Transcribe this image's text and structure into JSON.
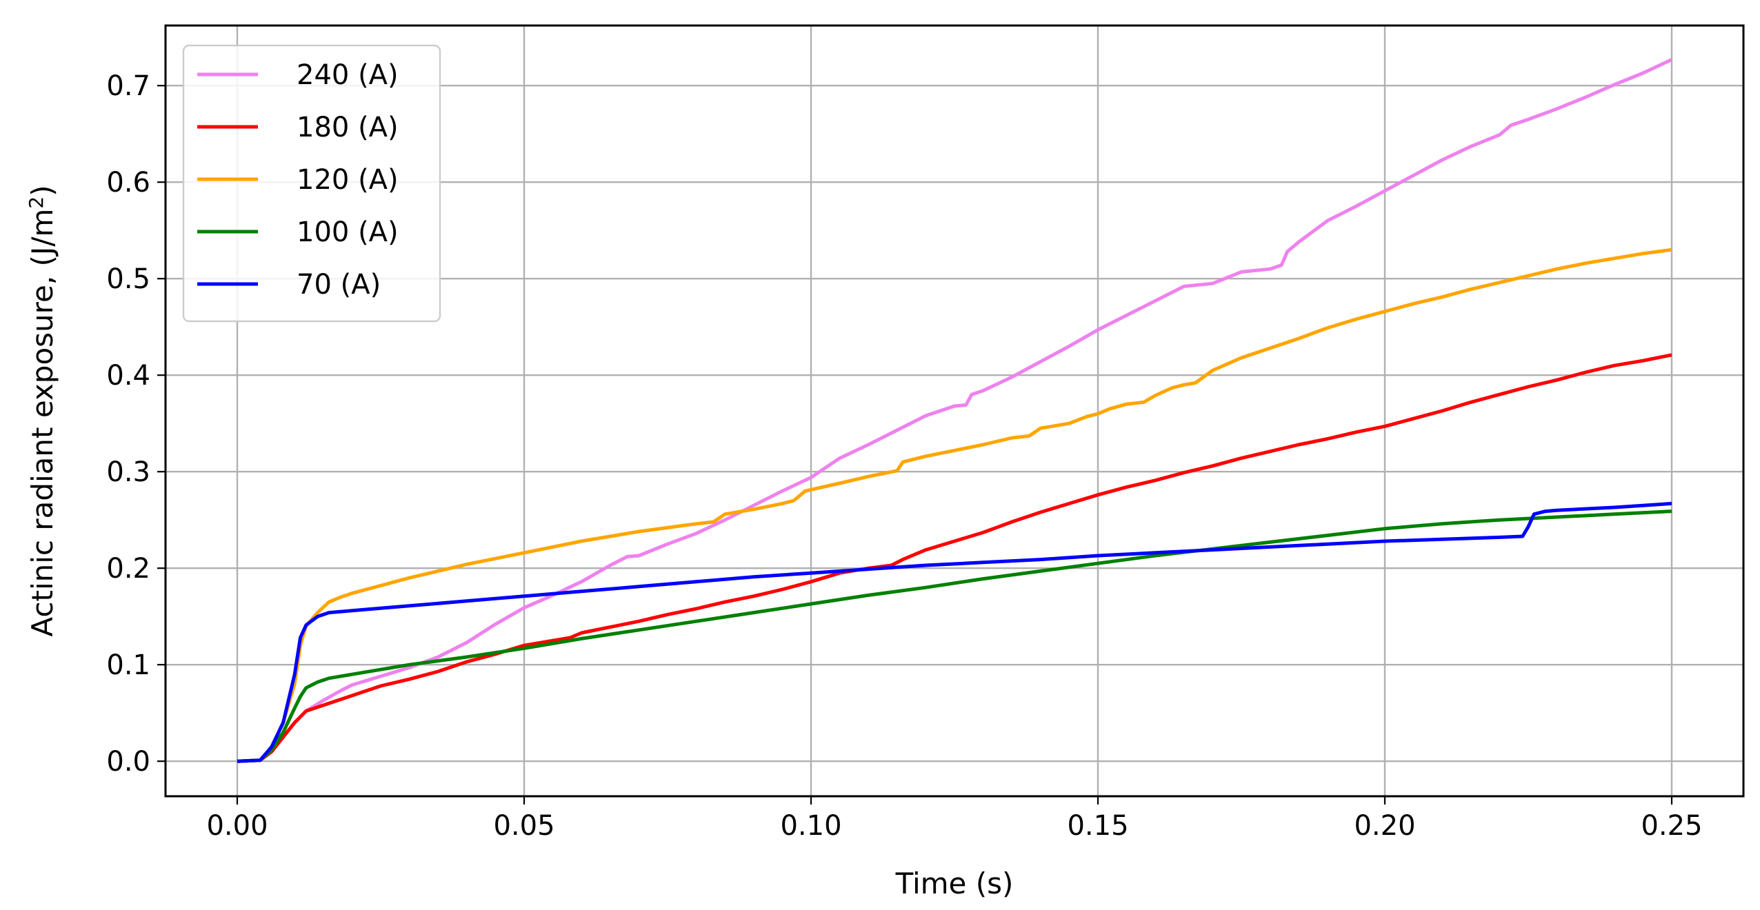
{
  "chart_data": {
    "type": "line",
    "xlabel": "Time (s)",
    "ylabel": "Actinic radiant exposure, (J/m",
    "ylabel_sup": "2",
    "ylabel_tail": ")",
    "xlim": [
      -0.0125,
      0.2625
    ],
    "ylim": [
      -0.0363,
      0.7623
    ],
    "xticks": [
      0.0,
      0.05,
      0.1,
      0.15,
      0.2,
      0.25
    ],
    "xtick_labels": [
      "0.00",
      "0.05",
      "0.10",
      "0.15",
      "0.20",
      "0.25"
    ],
    "yticks": [
      0.0,
      0.1,
      0.2,
      0.3,
      0.4,
      0.5,
      0.6,
      0.7
    ],
    "ytick_labels": [
      "0.0",
      "0.1",
      "0.2",
      "0.3",
      "0.4",
      "0.5",
      "0.6",
      "0.7"
    ],
    "grid": true,
    "legend_position": "upper-left",
    "series": [
      {
        "name": "240 (A)",
        "color": "#ee82ee",
        "points": [
          [
            0,
            0
          ],
          [
            0.004,
            0.001
          ],
          [
            0.006,
            0.01
          ],
          [
            0.008,
            0.025
          ],
          [
            0.01,
            0.04
          ],
          [
            0.012,
            0.052
          ],
          [
            0.015,
            0.063
          ],
          [
            0.018,
            0.073
          ],
          [
            0.02,
            0.079
          ],
          [
            0.025,
            0.088
          ],
          [
            0.03,
            0.097
          ],
          [
            0.035,
            0.108
          ],
          [
            0.04,
            0.123
          ],
          [
            0.045,
            0.142
          ],
          [
            0.05,
            0.159
          ],
          [
            0.055,
            0.172
          ],
          [
            0.06,
            0.186
          ],
          [
            0.065,
            0.203
          ],
          [
            0.068,
            0.212
          ],
          [
            0.07,
            0.213
          ],
          [
            0.075,
            0.225
          ],
          [
            0.08,
            0.236
          ],
          [
            0.085,
            0.25
          ],
          [
            0.09,
            0.265
          ],
          [
            0.095,
            0.28
          ],
          [
            0.1,
            0.294
          ],
          [
            0.105,
            0.314
          ],
          [
            0.11,
            0.328
          ],
          [
            0.115,
            0.343
          ],
          [
            0.12,
            0.358
          ],
          [
            0.125,
            0.368
          ],
          [
            0.127,
            0.369
          ],
          [
            0.128,
            0.38
          ],
          [
            0.13,
            0.384
          ],
          [
            0.135,
            0.398
          ],
          [
            0.14,
            0.414
          ],
          [
            0.145,
            0.43
          ],
          [
            0.15,
            0.447
          ],
          [
            0.155,
            0.462
          ],
          [
            0.16,
            0.477
          ],
          [
            0.165,
            0.492
          ],
          [
            0.17,
            0.495
          ],
          [
            0.175,
            0.507
          ],
          [
            0.18,
            0.51
          ],
          [
            0.182,
            0.514
          ],
          [
            0.183,
            0.528
          ],
          [
            0.185,
            0.538
          ],
          [
            0.19,
            0.56
          ],
          [
            0.195,
            0.575
          ],
          [
            0.2,
            0.591
          ],
          [
            0.205,
            0.607
          ],
          [
            0.21,
            0.623
          ],
          [
            0.215,
            0.637
          ],
          [
            0.22,
            0.649
          ],
          [
            0.222,
            0.659
          ],
          [
            0.225,
            0.665
          ],
          [
            0.23,
            0.676
          ],
          [
            0.235,
            0.688
          ],
          [
            0.24,
            0.701
          ],
          [
            0.245,
            0.713
          ],
          [
            0.25,
            0.727
          ]
        ]
      },
      {
        "name": "180 (A)",
        "color": "#ff0000",
        "points": [
          [
            0,
            0
          ],
          [
            0.004,
            0.001
          ],
          [
            0.006,
            0.01
          ],
          [
            0.008,
            0.025
          ],
          [
            0.01,
            0.04
          ],
          [
            0.012,
            0.052
          ],
          [
            0.015,
            0.058
          ],
          [
            0.02,
            0.068
          ],
          [
            0.025,
            0.078
          ],
          [
            0.03,
            0.085
          ],
          [
            0.035,
            0.093
          ],
          [
            0.04,
            0.103
          ],
          [
            0.045,
            0.111
          ],
          [
            0.05,
            0.12
          ],
          [
            0.055,
            0.125
          ],
          [
            0.058,
            0.128
          ],
          [
            0.06,
            0.133
          ],
          [
            0.065,
            0.139
          ],
          [
            0.07,
            0.145
          ],
          [
            0.075,
            0.152
          ],
          [
            0.08,
            0.158
          ],
          [
            0.085,
            0.165
          ],
          [
            0.09,
            0.171
          ],
          [
            0.095,
            0.178
          ],
          [
            0.1,
            0.186
          ],
          [
            0.105,
            0.195
          ],
          [
            0.11,
            0.2
          ],
          [
            0.114,
            0.203
          ],
          [
            0.116,
            0.209
          ],
          [
            0.12,
            0.219
          ],
          [
            0.125,
            0.228
          ],
          [
            0.13,
            0.237
          ],
          [
            0.135,
            0.248
          ],
          [
            0.14,
            0.258
          ],
          [
            0.145,
            0.267
          ],
          [
            0.15,
            0.276
          ],
          [
            0.155,
            0.284
          ],
          [
            0.16,
            0.291
          ],
          [
            0.165,
            0.299
          ],
          [
            0.17,
            0.306
          ],
          [
            0.175,
            0.314
          ],
          [
            0.18,
            0.321
          ],
          [
            0.185,
            0.328
          ],
          [
            0.19,
            0.334
          ],
          [
            0.195,
            0.341
          ],
          [
            0.2,
            0.347
          ],
          [
            0.205,
            0.355
          ],
          [
            0.21,
            0.363
          ],
          [
            0.215,
            0.372
          ],
          [
            0.22,
            0.38
          ],
          [
            0.225,
            0.388
          ],
          [
            0.23,
            0.395
          ],
          [
            0.235,
            0.403
          ],
          [
            0.24,
            0.41
          ],
          [
            0.245,
            0.415
          ],
          [
            0.25,
            0.421
          ]
        ]
      },
      {
        "name": "120 (A)",
        "color": "#ffa500",
        "points": [
          [
            0,
            0
          ],
          [
            0.004,
            0.001
          ],
          [
            0.006,
            0.015
          ],
          [
            0.008,
            0.04
          ],
          [
            0.01,
            0.08
          ],
          [
            0.011,
            0.12
          ],
          [
            0.012,
            0.14
          ],
          [
            0.014,
            0.154
          ],
          [
            0.016,
            0.165
          ],
          [
            0.018,
            0.17
          ],
          [
            0.02,
            0.174
          ],
          [
            0.025,
            0.182
          ],
          [
            0.03,
            0.19
          ],
          [
            0.035,
            0.197
          ],
          [
            0.04,
            0.204
          ],
          [
            0.045,
            0.21
          ],
          [
            0.05,
            0.216
          ],
          [
            0.055,
            0.222
          ],
          [
            0.06,
            0.228
          ],
          [
            0.065,
            0.233
          ],
          [
            0.07,
            0.238
          ],
          [
            0.075,
            0.242
          ],
          [
            0.08,
            0.246
          ],
          [
            0.083,
            0.248
          ],
          [
            0.085,
            0.256
          ],
          [
            0.09,
            0.261
          ],
          [
            0.095,
            0.267
          ],
          [
            0.097,
            0.27
          ],
          [
            0.099,
            0.28
          ],
          [
            0.105,
            0.288
          ],
          [
            0.11,
            0.295
          ],
          [
            0.115,
            0.301
          ],
          [
            0.116,
            0.31
          ],
          [
            0.12,
            0.316
          ],
          [
            0.125,
            0.322
          ],
          [
            0.13,
            0.328
          ],
          [
            0.135,
            0.335
          ],
          [
            0.138,
            0.337
          ],
          [
            0.14,
            0.345
          ],
          [
            0.145,
            0.35
          ],
          [
            0.148,
            0.357
          ],
          [
            0.15,
            0.36
          ],
          [
            0.152,
            0.365
          ],
          [
            0.155,
            0.37
          ],
          [
            0.158,
            0.372
          ],
          [
            0.16,
            0.379
          ],
          [
            0.163,
            0.387
          ],
          [
            0.165,
            0.39
          ],
          [
            0.167,
            0.392
          ],
          [
            0.17,
            0.405
          ],
          [
            0.175,
            0.418
          ],
          [
            0.18,
            0.428
          ],
          [
            0.185,
            0.438
          ],
          [
            0.19,
            0.449
          ],
          [
            0.195,
            0.458
          ],
          [
            0.2,
            0.466
          ],
          [
            0.205,
            0.474
          ],
          [
            0.21,
            0.481
          ],
          [
            0.215,
            0.489
          ],
          [
            0.22,
            0.496
          ],
          [
            0.225,
            0.503
          ],
          [
            0.23,
            0.51
          ],
          [
            0.235,
            0.516
          ],
          [
            0.24,
            0.521
          ],
          [
            0.245,
            0.526
          ],
          [
            0.25,
            0.53
          ]
        ]
      },
      {
        "name": "100 (A)",
        "color": "#008000",
        "points": [
          [
            0,
            0
          ],
          [
            0.004,
            0.001
          ],
          [
            0.006,
            0.012
          ],
          [
            0.008,
            0.03
          ],
          [
            0.01,
            0.055
          ],
          [
            0.011,
            0.067
          ],
          [
            0.012,
            0.076
          ],
          [
            0.014,
            0.082
          ],
          [
            0.016,
            0.086
          ],
          [
            0.02,
            0.09
          ],
          [
            0.025,
            0.095
          ],
          [
            0.03,
            0.1
          ],
          [
            0.035,
            0.104
          ],
          [
            0.04,
            0.108
          ],
          [
            0.05,
            0.117
          ],
          [
            0.06,
            0.127
          ],
          [
            0.07,
            0.136
          ],
          [
            0.08,
            0.145
          ],
          [
            0.09,
            0.154
          ],
          [
            0.1,
            0.163
          ],
          [
            0.11,
            0.172
          ],
          [
            0.12,
            0.18
          ],
          [
            0.13,
            0.189
          ],
          [
            0.14,
            0.197
          ],
          [
            0.15,
            0.205
          ],
          [
            0.16,
            0.213
          ],
          [
            0.17,
            0.22
          ],
          [
            0.18,
            0.227
          ],
          [
            0.19,
            0.234
          ],
          [
            0.2,
            0.241
          ],
          [
            0.21,
            0.246
          ],
          [
            0.22,
            0.25
          ],
          [
            0.23,
            0.253
          ],
          [
            0.24,
            0.256
          ],
          [
            0.25,
            0.259
          ]
        ]
      },
      {
        "name": "70 (A)",
        "color": "#0000ff",
        "points": [
          [
            0,
            0
          ],
          [
            0.004,
            0.001
          ],
          [
            0.006,
            0.015
          ],
          [
            0.008,
            0.04
          ],
          [
            0.01,
            0.09
          ],
          [
            0.011,
            0.128
          ],
          [
            0.012,
            0.141
          ],
          [
            0.014,
            0.15
          ],
          [
            0.016,
            0.154
          ],
          [
            0.02,
            0.156
          ],
          [
            0.03,
            0.161
          ],
          [
            0.04,
            0.166
          ],
          [
            0.05,
            0.171
          ],
          [
            0.06,
            0.176
          ],
          [
            0.07,
            0.181
          ],
          [
            0.08,
            0.186
          ],
          [
            0.09,
            0.191
          ],
          [
            0.1,
            0.195
          ],
          [
            0.11,
            0.199
          ],
          [
            0.12,
            0.203
          ],
          [
            0.13,
            0.206
          ],
          [
            0.14,
            0.209
          ],
          [
            0.15,
            0.213
          ],
          [
            0.16,
            0.216
          ],
          [
            0.17,
            0.219
          ],
          [
            0.18,
            0.222
          ],
          [
            0.19,
            0.225
          ],
          [
            0.2,
            0.228
          ],
          [
            0.21,
            0.23
          ],
          [
            0.22,
            0.232
          ],
          [
            0.224,
            0.233
          ],
          [
            0.225,
            0.243
          ],
          [
            0.226,
            0.256
          ],
          [
            0.228,
            0.259
          ],
          [
            0.23,
            0.26
          ],
          [
            0.24,
            0.263
          ],
          [
            0.25,
            0.267
          ]
        ]
      }
    ]
  }
}
